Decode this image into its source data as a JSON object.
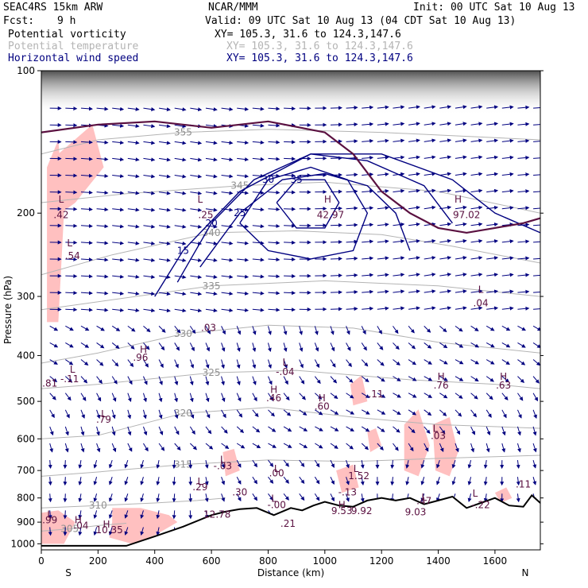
{
  "header": {
    "model": "SEAC4RS 15km ARW",
    "org": "NCAR/MMM",
    "init": "Init: 00 UTC Sat 10 Aug 13",
    "fcst_label": "Fcst:",
    "fcst_value": "9 h",
    "valid": "Valid: 09 UTC Sat 10 Aug 13 (04 CDT Sat 10 Aug 13)"
  },
  "fields": [
    {
      "name": "Potential vorticity",
      "xy": "XY= 105.3, 31.6 to 124.3,147.6",
      "color": "#000000"
    },
    {
      "name": "Potential temperature",
      "xy": "XY= 105.3, 31.6 to 124.3,147.6",
      "color": "#b4b4b4"
    },
    {
      "name": "Horizontal wind speed",
      "xy": "XY= 105.3, 31.6 to 124.3,147.6",
      "color": "#000080"
    }
  ],
  "chart_data": {
    "type": "cross-section",
    "xlabel": "Distance (km)",
    "ylabel": "Pressure (hPa)",
    "xlim": [
      0,
      1760
    ],
    "ylim": [
      1030,
      100
    ],
    "y_scale": "log",
    "x_ticks": [
      0,
      200,
      400,
      600,
      800,
      1000,
      1200,
      1400,
      1600
    ],
    "y_ticks": [
      100,
      200,
      300,
      400,
      500,
      600,
      700,
      800,
      900,
      1000
    ],
    "x_end_labels": {
      "left": "S",
      "right": "N"
    },
    "colors": {
      "theta": "#b4b4b4",
      "wind": "#000080",
      "pv_positive": "#ffc0c0",
      "pv_line": "#5a1040",
      "terrain": "#000000"
    },
    "theta_contours": [
      {
        "label": "355",
        "pts": [
          [
            0,
            150
          ],
          [
            200,
            140
          ],
          [
            500,
            135
          ],
          [
            800,
            133
          ],
          [
            1200,
            135
          ],
          [
            1760,
            140
          ]
        ]
      },
      {
        "label": "345",
        "pts": [
          [
            0,
            190
          ],
          [
            300,
            182
          ],
          [
            700,
            175
          ],
          [
            1000,
            172
          ],
          [
            1400,
            180
          ],
          [
            1760,
            200
          ]
        ]
      },
      {
        "label": "340",
        "pts": [
          [
            0,
            270
          ],
          [
            250,
            245
          ],
          [
            600,
            220
          ],
          [
            900,
            218
          ],
          [
            1200,
            222
          ],
          [
            1450,
            235
          ],
          [
            1760,
            255
          ]
        ]
      },
      {
        "label": "335",
        "pts": [
          [
            0,
            320
          ],
          [
            250,
            305
          ],
          [
            600,
            285
          ],
          [
            1000,
            278
          ],
          [
            1400,
            285
          ],
          [
            1760,
            300
          ]
        ]
      },
      {
        "label": "330",
        "pts": [
          [
            0,
            415
          ],
          [
            200,
            395
          ],
          [
            500,
            360
          ],
          [
            800,
            345
          ],
          [
            1100,
            350
          ],
          [
            1400,
            375
          ],
          [
            1760,
            395
          ]
        ]
      },
      {
        "label": "325",
        "pts": [
          [
            0,
            470
          ],
          [
            200,
            460
          ],
          [
            600,
            435
          ],
          [
            900,
            430
          ],
          [
            1300,
            450
          ],
          [
            1600,
            460
          ],
          [
            1760,
            470
          ]
        ]
      },
      {
        "label": "320",
        "pts": [
          [
            0,
            600
          ],
          [
            200,
            590
          ],
          [
            500,
            530
          ],
          [
            800,
            515
          ],
          [
            1100,
            540
          ],
          [
            1400,
            560
          ],
          [
            1760,
            570
          ]
        ]
      },
      {
        "label": "315",
        "pts": [
          [
            0,
            720
          ],
          [
            200,
            705
          ],
          [
            500,
            680
          ],
          [
            800,
            665
          ],
          [
            1100,
            670
          ],
          [
            1400,
            660
          ],
          [
            1760,
            650
          ]
        ]
      },
      {
        "label": "310",
        "pts": [
          [
            0,
            840
          ],
          [
            200,
            830
          ],
          [
            400,
            820
          ],
          [
            550,
            810
          ],
          [
            650,
            800
          ]
        ]
      },
      {
        "label": "305",
        "pts": [
          [
            0,
            940
          ],
          [
            100,
            930
          ],
          [
            200,
            915
          ],
          [
            300,
            905
          ]
        ]
      }
    ],
    "wind_speed_contours": [
      {
        "label": "15",
        "pts": [
          [
            400,
            300
          ],
          [
            500,
            240
          ],
          [
            700,
            180
          ],
          [
            950,
            150
          ],
          [
            1200,
            150
          ],
          [
            1450,
            170
          ],
          [
            1600,
            200
          ],
          [
            1760,
            220
          ]
        ]
      },
      {
        "label": "20",
        "pts": [
          [
            480,
            280
          ],
          [
            600,
            210
          ],
          [
            750,
            170
          ],
          [
            950,
            150
          ],
          [
            1150,
            155
          ],
          [
            1350,
            175
          ],
          [
            1450,
            210
          ]
        ]
      },
      {
        "label": "25",
        "pts": [
          [
            560,
            260
          ],
          [
            700,
            200
          ],
          [
            850,
            170
          ],
          [
            1000,
            165
          ],
          [
            1150,
            175
          ],
          [
            1250,
            200
          ],
          [
            1300,
            240
          ]
        ]
      },
      {
        "label": "30",
        "pts": [
          [
            700,
            210
          ],
          [
            800,
            170
          ],
          [
            950,
            160
          ],
          [
            1080,
            170
          ],
          [
            1150,
            200
          ],
          [
            1100,
            240
          ],
          [
            950,
            250
          ],
          [
            800,
            240
          ],
          [
            700,
            210
          ]
        ]
      },
      {
        "label": "35",
        "pts": [
          [
            830,
            190
          ],
          [
            900,
            170
          ],
          [
            1000,
            170
          ],
          [
            1050,
            190
          ],
          [
            1000,
            215
          ],
          [
            900,
            215
          ],
          [
            830,
            190
          ]
        ]
      }
    ],
    "pv_one_contour": [
      [
        0,
        135
      ],
      [
        200,
        130
      ],
      [
        400,
        128
      ],
      [
        600,
        132
      ],
      [
        800,
        128
      ],
      [
        1000,
        135
      ],
      [
        1100,
        150
      ],
      [
        1200,
        180
      ],
      [
        1300,
        200
      ],
      [
        1400,
        215
      ],
      [
        1500,
        220
      ],
      [
        1600,
        215
      ],
      [
        1700,
        210
      ],
      [
        1760,
        205
      ]
    ],
    "terrain": [
      [
        0,
        1010
      ],
      [
        100,
        1010
      ],
      [
        300,
        1010
      ],
      [
        400,
        965
      ],
      [
        500,
        920
      ],
      [
        600,
        870
      ],
      [
        650,
        855
      ],
      [
        700,
        845
      ],
      [
        760,
        840
      ],
      [
        820,
        870
      ],
      [
        880,
        840
      ],
      [
        920,
        850
      ],
      [
        960,
        830
      ],
      [
        1000,
        815
      ],
      [
        1050,
        830
      ],
      [
        1100,
        835
      ],
      [
        1150,
        810
      ],
      [
        1200,
        800
      ],
      [
        1250,
        810
      ],
      [
        1300,
        800
      ],
      [
        1350,
        825
      ],
      [
        1400,
        810
      ],
      [
        1450,
        795
      ],
      [
        1500,
        840
      ],
      [
        1550,
        820
      ],
      [
        1600,
        800
      ],
      [
        1650,
        830
      ],
      [
        1700,
        835
      ],
      [
        1730,
        790
      ],
      [
        1760,
        820
      ]
    ],
    "pv_positive_regions": [
      {
        "pts": [
          [
            20,
            160
          ],
          [
            60,
            140
          ],
          [
            80,
            200
          ],
          [
            60,
            340
          ],
          [
            20,
            340
          ]
        ]
      },
      {
        "pts": [
          [
            60,
            150
          ],
          [
            180,
            130
          ],
          [
            220,
            160
          ],
          [
            120,
            190
          ],
          [
            70,
            200
          ]
        ]
      },
      {
        "pts": [
          [
            0,
            860
          ],
          [
            60,
            850
          ],
          [
            120,
            900
          ],
          [
            80,
            1000
          ],
          [
            0,
            1000
          ]
        ]
      },
      {
        "pts": [
          [
            250,
            840
          ],
          [
            350,
            840
          ],
          [
            450,
            870
          ],
          [
            480,
            900
          ],
          [
            400,
            960
          ],
          [
            320,
            1000
          ],
          [
            240,
            970
          ],
          [
            250,
            900
          ]
        ]
      },
      {
        "pts": [
          [
            640,
            640
          ],
          [
            680,
            630
          ],
          [
            700,
            700
          ],
          [
            650,
            720
          ]
        ]
      },
      {
        "pts": [
          [
            1090,
            460
          ],
          [
            1130,
            440
          ],
          [
            1150,
            500
          ],
          [
            1100,
            510
          ]
        ]
      },
      {
        "pts": [
          [
            1150,
            580
          ],
          [
            1180,
            570
          ],
          [
            1200,
            620
          ],
          [
            1160,
            640
          ]
        ]
      },
      {
        "pts": [
          [
            1280,
            560
          ],
          [
            1330,
            520
          ],
          [
            1370,
            620
          ],
          [
            1330,
            720
          ],
          [
            1280,
            700
          ]
        ]
      },
      {
        "pts": [
          [
            1380,
            560
          ],
          [
            1440,
            540
          ],
          [
            1470,
            640
          ],
          [
            1440,
            720
          ],
          [
            1390,
            700
          ]
        ]
      },
      {
        "pts": [
          [
            1040,
            700
          ],
          [
            1100,
            680
          ],
          [
            1120,
            760
          ],
          [
            1060,
            780
          ]
        ]
      },
      {
        "pts": [
          [
            1600,
            780
          ],
          [
            1640,
            760
          ],
          [
            1660,
            800
          ],
          [
            1620,
            820
          ]
        ]
      }
    ],
    "annotations": [
      {
        "text": "L",
        "x": 70,
        "p": 190
      },
      {
        "text": ".42",
        "x": 70,
        "p": 205
      },
      {
        "text": "L",
        "x": 100,
        "p": 235
      },
      {
        "text": ".54",
        "x": 110,
        "p": 250
      },
      {
        "text": "L",
        "x": 560,
        "p": 190
      },
      {
        "text": ".25",
        "x": 580,
        "p": 205
      },
      {
        "text": "H",
        "x": 1010,
        "p": 190
      },
      {
        "text": "42.97",
        "x": 1020,
        "p": 205
      },
      {
        "text": "H",
        "x": 1470,
        "p": 190
      },
      {
        "text": "97.02",
        "x": 1500,
        "p": 205
      },
      {
        "text": ".03",
        "x": 590,
        "p": 355
      },
      {
        "text": "H",
        "x": 360,
        "p": 395
      },
      {
        "text": ".96",
        "x": 350,
        "p": 410
      },
      {
        "text": "L",
        "x": 110,
        "p": 435
      },
      {
        "text": "-.11",
        "x": 100,
        "p": 455
      },
      {
        "text": "L",
        "x": 1550,
        "p": 295
      },
      {
        "text": ".04",
        "x": 1550,
        "p": 315
      },
      {
        "text": "L",
        "x": 860,
        "p": 420
      },
      {
        "text": "-.04",
        "x": 860,
        "p": 440
      },
      {
        "text": "H",
        "x": 820,
        "p": 480
      },
      {
        "text": ".46",
        "x": 820,
        "p": 500
      },
      {
        "text": "H",
        "x": 990,
        "p": 500
      },
      {
        "text": ".60",
        "x": 990,
        "p": 520
      },
      {
        "text": "H",
        "x": 1410,
        "p": 450
      },
      {
        "text": ".76",
        "x": 1410,
        "p": 470
      },
      {
        "text": "H",
        "x": 1630,
        "p": 450
      },
      {
        "text": ".63",
        "x": 1630,
        "p": 470
      },
      {
        "text": "L",
        "x": 220,
        "p": 540
      },
      {
        "text": ".79",
        "x": 220,
        "p": 555
      },
      {
        "text": "L",
        "x": 1390,
        "p": 580
      },
      {
        "text": ".03",
        "x": 1400,
        "p": 600
      },
      {
        "text": ".11",
        "x": 1180,
        "p": 490
      },
      {
        "text": "L",
        "x": 640,
        "p": 675
      },
      {
        "text": "-.03",
        "x": 640,
        "p": 695
      },
      {
        "text": "L",
        "x": 830,
        "p": 705
      },
      {
        "text": ".00",
        "x": 830,
        "p": 720
      },
      {
        "text": "L",
        "x": 560,
        "p": 750
      },
      {
        "text": ".29",
        "x": 560,
        "p": 770
      },
      {
        "text": "L",
        "x": 1110,
        "p": 705
      },
      {
        "text": "1.52",
        "x": 1120,
        "p": 730
      },
      {
        "text": "-.13",
        "x": 1080,
        "p": 790
      },
      {
        "text": ".30",
        "x": 700,
        "p": 790
      },
      {
        "text": "L",
        "x": 820,
        "p": 815
      },
      {
        "text": "-.00",
        "x": 830,
        "p": 840
      },
      {
        "text": "L",
        "x": 1350,
        "p": 810
      },
      {
        "text": ".47",
        "x": 1350,
        "p": 825
      },
      {
        "text": "L",
        "x": 1530,
        "p": 795
      },
      {
        "text": "-.22",
        "x": 1550,
        "p": 840
      },
      {
        "text": ".11",
        "x": 1700,
        "p": 760
      },
      {
        "text": ".81",
        "x": 30,
        "p": 465
      },
      {
        "text": "L",
        "x": 30,
        "p": 880
      },
      {
        "text": ".99",
        "x": 30,
        "p": 905
      },
      {
        "text": "H",
        "x": 130,
        "p": 905
      },
      {
        "text": ".04",
        "x": 140,
        "p": 930
      },
      {
        "text": "H",
        "x": 230,
        "p": 925
      },
      {
        "text": "10.35",
        "x": 240,
        "p": 950
      },
      {
        "text": "H",
        "x": 1060,
        "p": 840
      },
      {
        "text": "9.53",
        "x": 1060,
        "p": 865
      },
      {
        "text": "9.92",
        "x": 1130,
        "p": 865
      },
      {
        "text": "9.03",
        "x": 1320,
        "p": 870
      },
      {
        "text": "12.78",
        "x": 620,
        "p": 880
      },
      {
        "text": ".21",
        "x": 870,
        "p": 920
      }
    ]
  }
}
